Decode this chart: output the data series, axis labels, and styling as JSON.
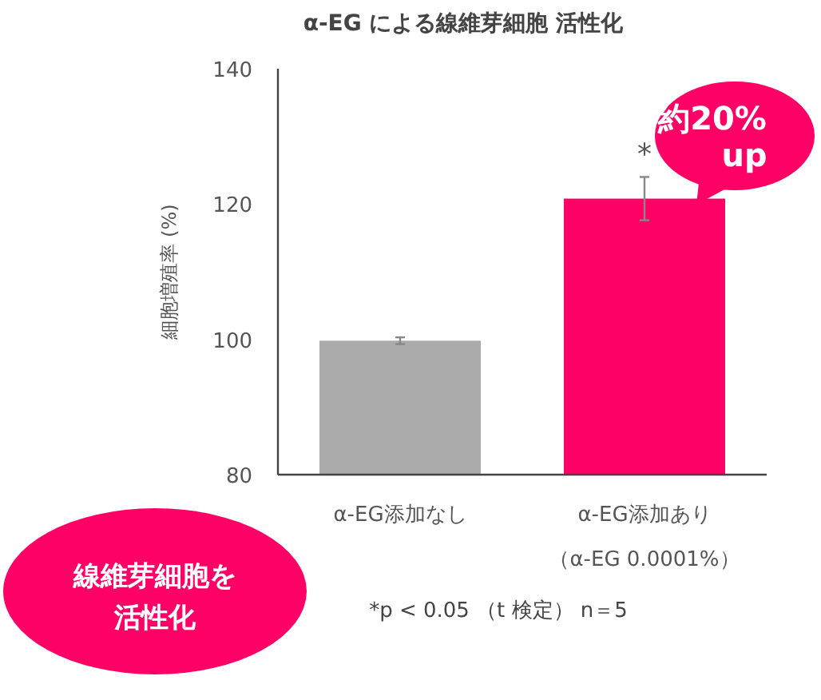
{
  "chart_data": {
    "type": "bar",
    "title": "α-EG による線維芽細胞 活性化",
    "ylabel": "細胞増殖率 (%)",
    "categories": [
      "α-EG添加なし",
      "α-EG添加あり"
    ],
    "values": [
      99.8,
      120.8
    ],
    "errors": [
      0.5,
      3.2
    ],
    "colors": [
      "#aaaaaa",
      "#ff0066"
    ],
    "ylim": [
      80,
      140
    ],
    "yticks": [
      80,
      100,
      120,
      140
    ],
    "annotations": [
      {
        "text": "*",
        "x": "α-EG添加あり",
        "y": 124.0
      },
      "（α-EG 0.0001%）",
      "約20%",
      "up",
      "線維芽細胞を",
      "活性化",
      "*p < 0.05 （t 検定） n＝5"
    ]
  }
}
